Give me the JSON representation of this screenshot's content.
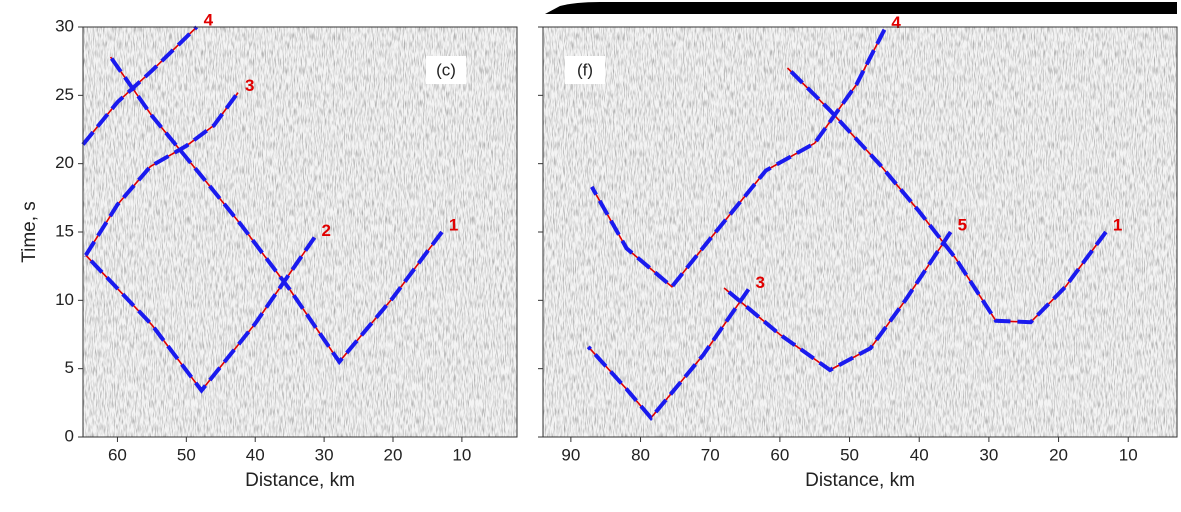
{
  "chart_data": [
    {
      "type": "line",
      "ylabel": "Time, s",
      "xlabel": "Distance, km",
      "annotation": "(c)",
      "xlim": [
        65,
        2
      ],
      "ylim": [
        0,
        30
      ],
      "xticks": [
        60,
        50,
        40,
        30,
        20,
        10
      ],
      "yticks": [
        0,
        5,
        10,
        15,
        20,
        25,
        30
      ],
      "trace_color": "#e00000",
      "series": [
        {
          "label": "1",
          "color": "#1a1aee",
          "x": [
            12.9,
            20,
            27.8,
            35,
            42,
            47.3,
            55,
            61
          ],
          "values": [
            15,
            10.2,
            5.5,
            10.8,
            15.5,
            18.8,
            23.5,
            27.8
          ]
        },
        {
          "label": "2",
          "color": "#1a1aee",
          "x": [
            31.4,
            40,
            47.8,
            55,
            64.6
          ],
          "values": [
            14.6,
            8.3,
            3.4,
            8.2,
            13.3
          ]
        },
        {
          "label": "3",
          "color": "#1a1aee",
          "x": [
            64.6,
            60,
            55.2,
            50,
            46,
            42.5
          ],
          "values": [
            13.3,
            17,
            19.8,
            21.3,
            22.8,
            25.2
          ]
        },
        {
          "label": "4",
          "color": "#1a1aee",
          "x": [
            65,
            60,
            55,
            48.5
          ],
          "values": [
            21.4,
            24.5,
            26.8,
            30
          ]
        }
      ]
    },
    {
      "type": "line",
      "xlabel": "Distance, km",
      "annotation": "(f)",
      "xlim": [
        94,
        3
      ],
      "ylim": [
        0,
        30
      ],
      "xticks": [
        90,
        80,
        70,
        60,
        50,
        40,
        30,
        20,
        10
      ],
      "yticks": [
        0,
        5,
        10,
        15,
        20,
        25,
        30
      ],
      "trace_color": "#e00000",
      "series": [
        {
          "label": "1",
          "color": "#1a1aee",
          "x": [
            13.2,
            19,
            24,
            29,
            34.8,
            40,
            45.6,
            52.8,
            58.9
          ],
          "values": [
            15,
            11,
            8.4,
            8.5,
            13.1,
            16.5,
            19.9,
            23.9,
            27
          ]
        },
        {
          "label": "5",
          "color": "#1a1aee",
          "x": [
            35.5,
            42,
            47,
            52.8,
            60,
            68
          ],
          "values": [
            15,
            10,
            6.5,
            4.9,
            7.5,
            10.9
          ]
        },
        {
          "label": "3",
          "color": "#1a1aee",
          "x": [
            64.5,
            71,
            78.5,
            82,
            87.5
          ],
          "values": [
            10.8,
            6,
            1.4,
            3.5,
            6.6
          ]
        },
        {
          "label": "4",
          "color": "#1a1aee",
          "x": [
            45,
            49,
            55,
            62,
            70,
            75.5,
            82,
            87
          ],
          "values": [
            29.8,
            25.8,
            21.5,
            19.5,
            14.5,
            11,
            13.8,
            18.3
          ]
        }
      ]
    }
  ]
}
